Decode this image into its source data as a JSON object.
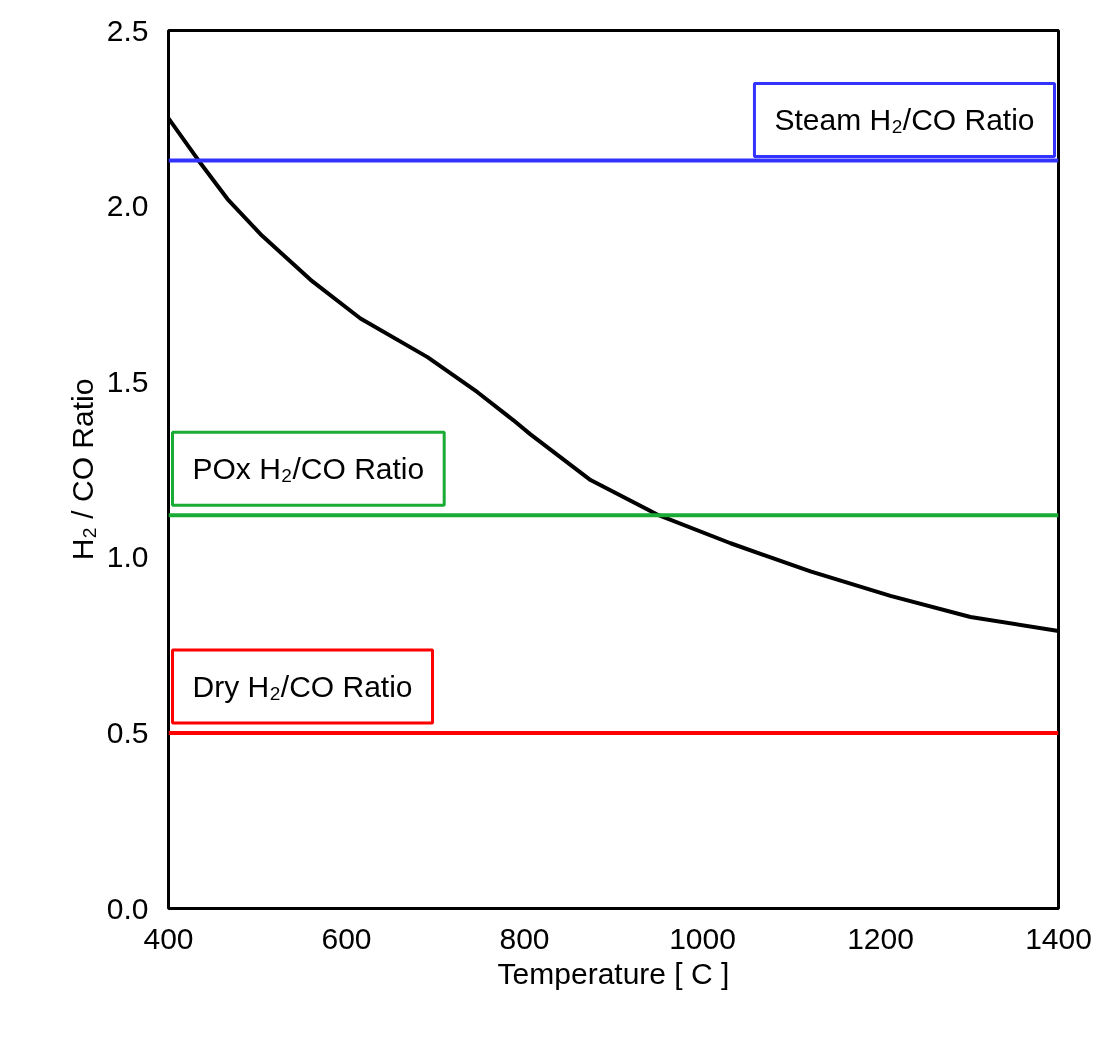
{
  "chart_data": {
    "type": "line",
    "xlabel": "Temperature [ C ]",
    "ylabel": "H₂ / CO Ratio",
    "x": [
      400,
      433.7,
      466.3,
      503.4,
      559.6,
      615.7,
      691,
      747.2,
      787.6,
      806.7,
      874.2,
      950.6,
      1031.5,
      1121.3,
      1211.2,
      1301.1,
      1400
    ],
    "series": [
      {
        "color": "#000000",
        "values": [
          2.25,
          2.13,
          2.02,
          1.92,
          1.79,
          1.68,
          1.57,
          1.47,
          1.39,
          1.35,
          1.22,
          1.12,
          1.04,
          0.96,
          0.89,
          0.83,
          0.79
        ]
      }
    ],
    "ref_lines": [
      {
        "axis": "y",
        "value": 2.13,
        "label": "Steam H₂/CO Ratio",
        "color": "#3333ff"
      },
      {
        "axis": "y",
        "value": 1.12,
        "label": "POx H₂/CO Ratio",
        "color": "#1aab35"
      },
      {
        "axis": "y",
        "value": 0.5,
        "label": "Dry H₂/CO Ratio",
        "color": "#ff0000"
      }
    ],
    "xlim": [
      400,
      1400
    ],
    "xticks": [
      400,
      600,
      800,
      1000,
      1200,
      1400
    ],
    "ylim": [
      0,
      2.5
    ],
    "yticks": [
      {
        "value": 0,
        "label": "0.0"
      },
      0.5,
      {
        "value": 1,
        "label": "1.0"
      },
      1.5,
      {
        "value": 2,
        "label": "2.0"
      },
      2.5
    ],
    "grid": false,
    "marker": "none",
    "line_style": "solid"
  }
}
